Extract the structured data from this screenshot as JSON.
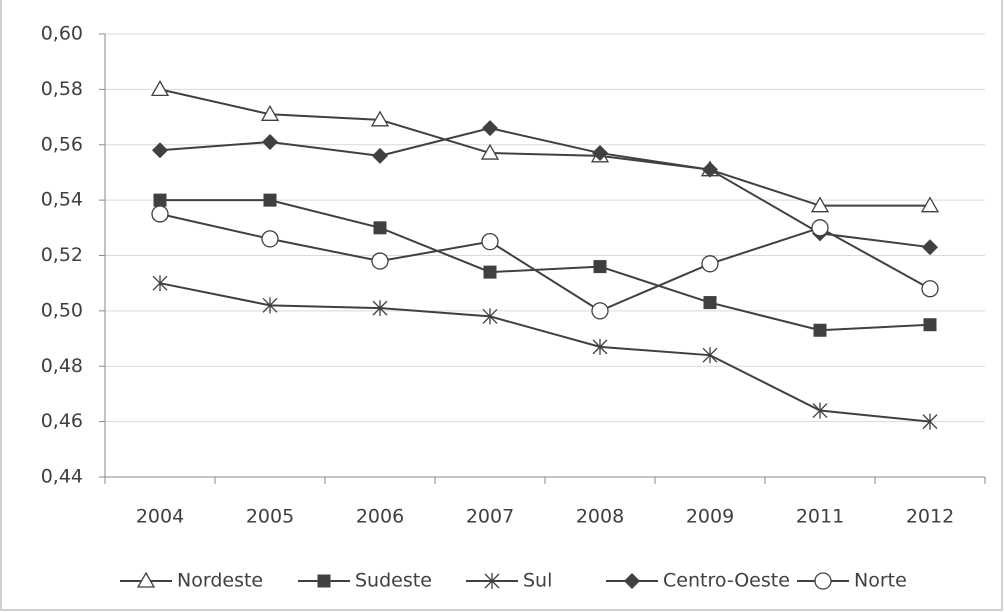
{
  "chart_data": {
    "type": "line",
    "categories": [
      "2004",
      "2005",
      "2006",
      "2007",
      "2008",
      "2009",
      "2011",
      "2012"
    ],
    "series": [
      {
        "name": "Nordeste",
        "color": "#404040",
        "marker": "triangle",
        "values": [
          0.58,
          0.571,
          0.569,
          0.557,
          0.556,
          0.551,
          0.538,
          0.538
        ]
      },
      {
        "name": "Sudeste",
        "color": "#404040",
        "marker": "square",
        "values": [
          0.54,
          0.54,
          0.53,
          0.514,
          0.516,
          0.503,
          0.493,
          0.495
        ]
      },
      {
        "name": "Sul",
        "color": "#404040",
        "marker": "asterisk",
        "values": [
          0.51,
          0.502,
          0.501,
          0.498,
          0.487,
          0.484,
          0.464,
          0.46
        ]
      },
      {
        "name": "Centro-Oeste",
        "color": "#404040",
        "marker": "diamond",
        "values": [
          0.558,
          0.561,
          0.556,
          0.566,
          0.557,
          0.551,
          0.528,
          0.523
        ]
      },
      {
        "name": "Norte",
        "color": "#404040",
        "marker": "circle",
        "values": [
          0.535,
          0.526,
          0.518,
          0.525,
          0.5,
          0.517,
          0.53,
          0.508
        ]
      }
    ],
    "ylim": [
      0.44,
      0.6
    ],
    "yticks": [
      {
        "value": 0.44,
        "label": "0,44"
      },
      {
        "value": 0.46,
        "label": "0,46"
      },
      {
        "value": 0.48,
        "label": "0,48"
      },
      {
        "value": 0.5,
        "label": "0,50"
      },
      {
        "value": 0.52,
        "label": "0,52"
      },
      {
        "value": 0.54,
        "label": "0,54"
      },
      {
        "value": 0.56,
        "label": "0,56"
      },
      {
        "value": 0.58,
        "label": "0,58"
      },
      {
        "value": 0.6,
        "label": "0,60"
      }
    ],
    "grid": true,
    "legend": "bottom"
  }
}
